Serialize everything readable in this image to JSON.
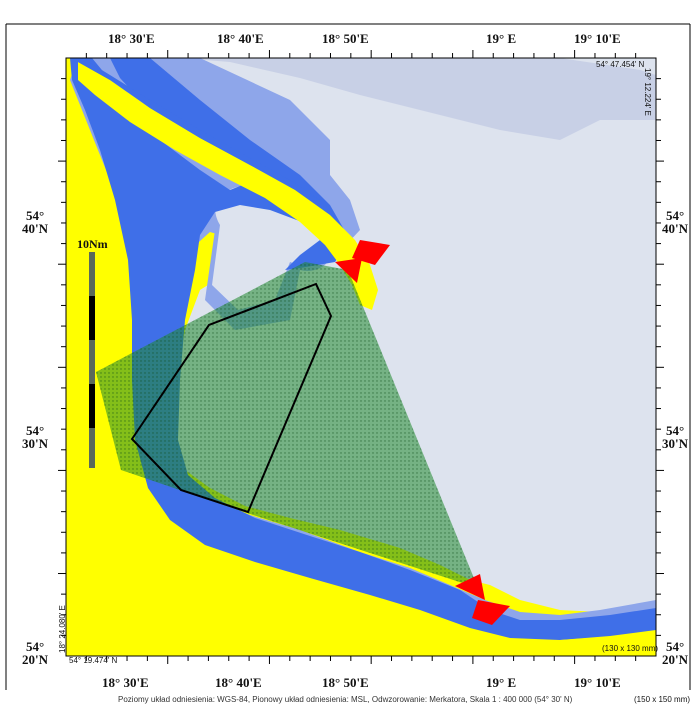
{
  "map": {
    "top_lon_labels": [
      "18° 30'E",
      "18° 40'E",
      "18° 50'E",
      "19° E",
      "19° 10'E"
    ],
    "bottom_lon_labels": [
      "18° 30'E",
      "18° 40'E",
      "18° 50'E",
      "19° E",
      "19° 10'E"
    ],
    "lat_labels": [
      {
        "deg": "54°",
        "min": "40'N"
      },
      {
        "deg": "54°",
        "min": "30'N"
      },
      {
        "deg": "54°",
        "min": "20'N"
      }
    ],
    "corner_top_right_lat": "54° 47.454' N",
    "corner_top_right_lon": "19° 12.224' E",
    "corner_bottom_left_lat": "54° 19.474' N",
    "corner_bottom_left_lon": "18° 24.080' E",
    "scale_bar_label": "10Nm",
    "inner_size_note": "(130 x 130 mm)",
    "outer_size_note": "(150 x 150 mm)",
    "footer": "Poziomy układ odniesienia: WGS-84, Pionowy układ odniesienia: MSL, Odwzorowanie: Merkatora, Skala 1 : 400 000 (54°  30' N)",
    "colors": {
      "land": "#ffff00",
      "shallow_water": "#3f6fe8",
      "mid_water": "#8ea6ea",
      "deep_water": "#dde3ee",
      "sector": "#1e8a2e",
      "marker": "#ff0000"
    }
  }
}
